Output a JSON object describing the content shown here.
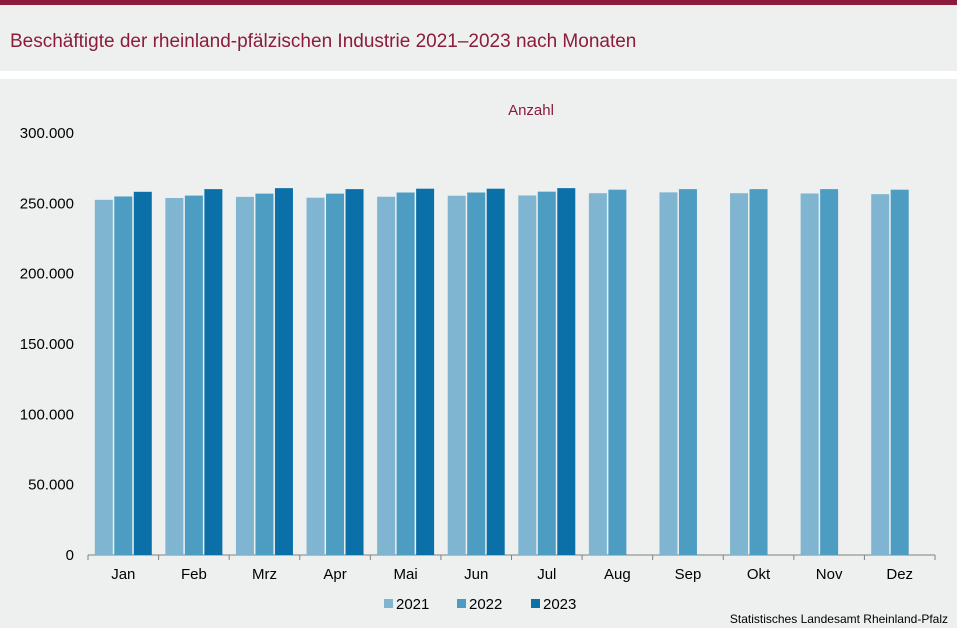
{
  "title": "Beschäftigte der rheinland-pfälzischen Industrie 2021–2023 nach Monaten",
  "source": "Statistisches Landesamt Rheinland-Pfalz",
  "colors": {
    "brand": "#8c1c3a",
    "s2021": "#7fb5d0",
    "s2022": "#4d9dc2",
    "s2023": "#0b6fa8"
  },
  "chart_data": {
    "type": "bar",
    "unit_label": "Anzahl",
    "categories": [
      "Jan",
      "Feb",
      "Mrz",
      "Apr",
      "Mai",
      "Jun",
      "Jul",
      "Aug",
      "Sep",
      "Okt",
      "Nov",
      "Dez"
    ],
    "series": [
      {
        "name": "2021",
        "values": [
          252500,
          253800,
          254600,
          254000,
          254700,
          255400,
          255600,
          257200,
          257800,
          257200,
          257000,
          256500
        ]
      },
      {
        "name": "2022",
        "values": [
          254900,
          255500,
          256900,
          256900,
          257700,
          257700,
          258300,
          259700,
          260100,
          260100,
          260100,
          259700
        ]
      },
      {
        "name": "2023",
        "values": [
          258200,
          260100,
          260800,
          260100,
          260400,
          260400,
          260800,
          null,
          null,
          null,
          null,
          null
        ]
      }
    ],
    "ylim": [
      0,
      300000
    ],
    "yticks": [
      "0",
      "50.000",
      "100.000",
      "150.000",
      "200.000",
      "250.000",
      "300.000"
    ],
    "grid": false,
    "legend": "bottom-center"
  }
}
